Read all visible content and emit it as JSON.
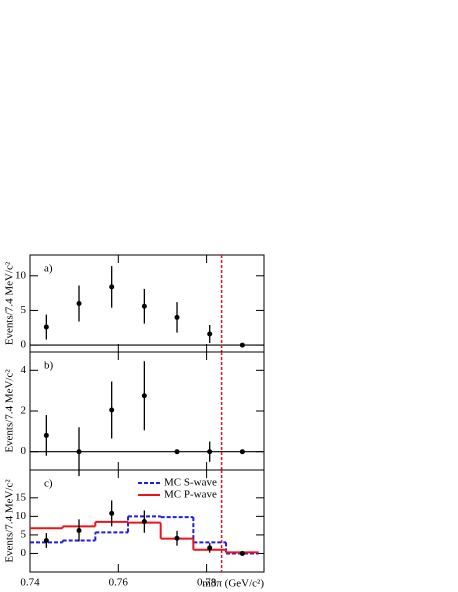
{
  "chart_data": [
    {
      "type": "errorbar",
      "label": "a)",
      "y_label": "Events/7.4 MeV/c²",
      "x": [
        0.7437,
        0.7511,
        0.7585,
        0.7659,
        0.7733,
        0.7807,
        0.7881
      ],
      "values": [
        2.6,
        6.0,
        8.4,
        5.6,
        4.0,
        1.6,
        0
      ],
      "errors": [
        1.8,
        2.6,
        3.0,
        2.5,
        2.2,
        1.3,
        0
      ],
      "xlim": [
        0.74,
        0.793
      ],
      "ylim": [
        -1,
        13
      ],
      "yticks": [
        0,
        5,
        10
      ],
      "vline": 0.7834,
      "vline_color": "#e8141c",
      "color": "#000000"
    },
    {
      "type": "errorbar",
      "label": "b)",
      "y_label": "Events/7.4 MeV/c²",
      "x": [
        0.7437,
        0.7511,
        0.7585,
        0.7659,
        0.7733,
        0.7807,
        0.7881
      ],
      "values": [
        0.8,
        0,
        2.05,
        2.75,
        0,
        0,
        0
      ],
      "errors": [
        1.0,
        1.2,
        1.4,
        1.7,
        0,
        0.5,
        0
      ],
      "xlim": [
        0.74,
        0.793
      ],
      "ylim": [
        -0.9,
        4.9
      ],
      "yticks": [
        0,
        2,
        4
      ],
      "vline": 0.7834,
      "vline_color": "#e8141c",
      "color": "#000000"
    },
    {
      "type": "errorbar",
      "label": "c)",
      "y_label": "Events/7.4 MeV/c²",
      "x_label": "m3π (GeV/c²)",
      "x": [
        0.7437,
        0.7511,
        0.7585,
        0.7659,
        0.7733,
        0.7807,
        0.7881
      ],
      "values": [
        3.5,
        6.2,
        10.8,
        8.6,
        4.1,
        1.5,
        0
      ],
      "errors": [
        2.0,
        3.0,
        3.5,
        3.0,
        2.0,
        1.3,
        0
      ],
      "xlim": [
        0.74,
        0.793
      ],
      "ylim": [
        -5,
        22.5
      ],
      "yticks": [
        0,
        5,
        10,
        15
      ],
      "xticks": [
        0.74,
        0.76,
        0.78
      ],
      "vline": 0.7834,
      "vline_color": "#e8141c",
      "color": "#000000",
      "series": [
        {
          "name": "MC S-wave",
          "color": "#1f1fe0",
          "dashed": true,
          "bins": [
            0.74,
            0.7474,
            0.7548,
            0.7622,
            0.7696,
            0.777,
            0.7844,
            0.7918
          ],
          "values": [
            3.0,
            3.5,
            5.7,
            10.0,
            9.8,
            3.0,
            0
          ]
        },
        {
          "name": "MC P-wave",
          "color": "#e8141c",
          "dashed": false,
          "bins": [
            0.74,
            0.7474,
            0.7548,
            0.7622,
            0.7696,
            0.777,
            0.7844,
            0.7918
          ],
          "values": [
            6.8,
            7.3,
            8.5,
            8.3,
            4.0,
            1.0,
            0.3
          ]
        }
      ]
    }
  ]
}
